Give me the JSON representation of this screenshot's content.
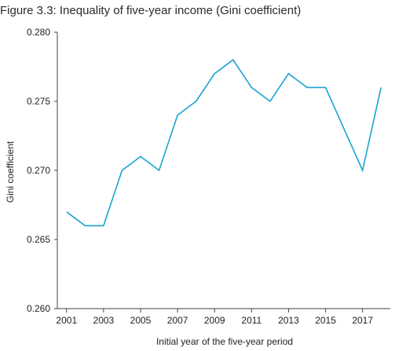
{
  "chart_data": {
    "type": "line",
    "title": "Figure 3.3: Inequality of five-year income (Gini coefficient)",
    "xlabel": "Initial year of the five-year period",
    "ylabel": "Gini coefficient",
    "x": [
      2001,
      2002,
      2003,
      2004,
      2005,
      2006,
      2007,
      2008,
      2009,
      2010,
      2011,
      2012,
      2013,
      2014,
      2015,
      2016,
      2017,
      2018
    ],
    "x_tick_labels": [
      "2001",
      "2003",
      "2005",
      "2007",
      "2009",
      "2011",
      "2013",
      "2015",
      "2017"
    ],
    "series": [
      {
        "values": [
          0.267,
          0.266,
          0.266,
          0.27,
          0.271,
          0.27,
          0.274,
          0.275,
          0.277,
          0.278,
          0.276,
          0.275,
          0.277,
          0.276,
          0.276,
          0.273,
          0.27,
          0.276
        ],
        "color": "#1aa3cf"
      }
    ],
    "y_tick_labels": [
      "0.280",
      "0.275",
      "0.270",
      "0.265",
      "0.260"
    ],
    "ylim": [
      0.26,
      0.28
    ],
    "xlim": [
      2000.5,
      2018.5
    ],
    "grid": false,
    "legend": "none"
  },
  "colors": {
    "axis": "#444444",
    "line": "#1aa3cf"
  }
}
